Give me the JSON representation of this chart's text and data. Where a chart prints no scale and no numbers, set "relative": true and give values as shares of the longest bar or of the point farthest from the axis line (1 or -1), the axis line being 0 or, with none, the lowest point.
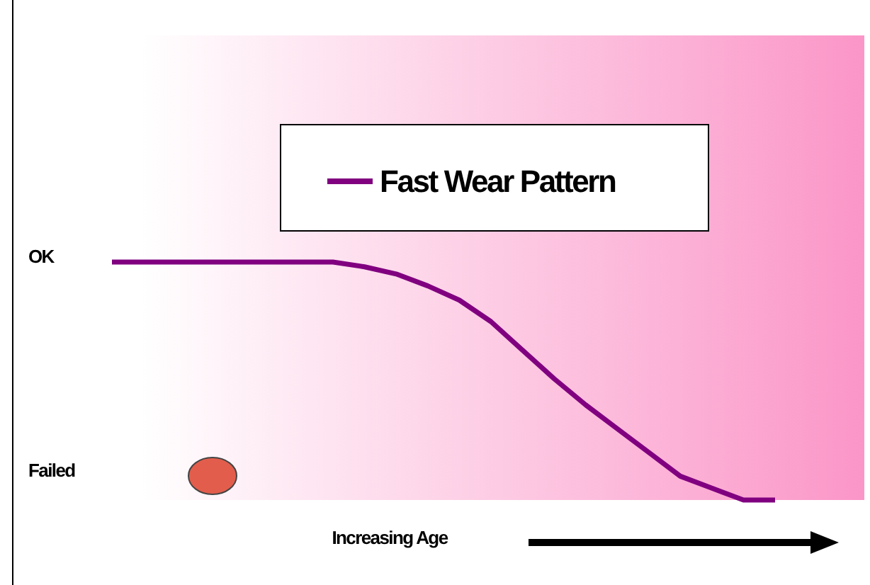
{
  "chart_data": {
    "type": "line",
    "xlabel": "Increasing Age",
    "categories": [
      null,
      null,
      null,
      null,
      null,
      null,
      null,
      null,
      null,
      null,
      null,
      null,
      null,
      null,
      null,
      null,
      null,
      null,
      null,
      null,
      null,
      null
    ],
    "series": [
      {
        "name": "Fast Wear Pattern",
        "color": "#800080",
        "values": [
          1,
          1,
          1,
          1,
          1,
          1,
          1,
          1,
          0.98,
          0.95,
          0.9,
          0.84,
          0.75,
          0.63,
          0.51,
          0.4,
          0.3,
          0.2,
          0.1,
          0.05,
          0,
          0
        ]
      }
    ],
    "relative": true,
    "annotations": [
      "OK",
      "Failed"
    ],
    "legend": "top",
    "marker": "none",
    "line_style": "solid"
  }
}
